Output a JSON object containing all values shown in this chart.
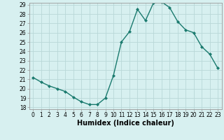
{
  "x": [
    0,
    1,
    2,
    3,
    4,
    5,
    6,
    7,
    8,
    9,
    10,
    11,
    12,
    13,
    14,
    15,
    16,
    17,
    18,
    19,
    20,
    21,
    22,
    23
  ],
  "y": [
    21.2,
    20.7,
    20.3,
    20.0,
    19.7,
    19.1,
    18.6,
    18.3,
    18.3,
    19.0,
    21.4,
    25.0,
    26.1,
    28.5,
    27.3,
    29.2,
    29.3,
    28.7,
    27.2,
    26.3,
    26.0,
    24.5,
    23.7,
    22.2
  ],
  "line_color": "#1a7a6e",
  "marker": "D",
  "marker_size": 2.0,
  "bg_color": "#d7f0f0",
  "grid_color": "#b8d8d8",
  "xlabel": "Humidex (Indice chaleur)",
  "xlabel_fontsize": 7,
  "ylim": [
    18,
    29
  ],
  "xlim": [
    -0.5,
    23.5
  ],
  "yticks": [
    18,
    19,
    20,
    21,
    22,
    23,
    24,
    25,
    26,
    27,
    28,
    29
  ],
  "xticks": [
    0,
    1,
    2,
    3,
    4,
    5,
    6,
    7,
    8,
    9,
    10,
    11,
    12,
    13,
    14,
    15,
    16,
    17,
    18,
    19,
    20,
    21,
    22,
    23
  ],
  "tick_fontsize": 5.5,
  "line_width": 1.0
}
